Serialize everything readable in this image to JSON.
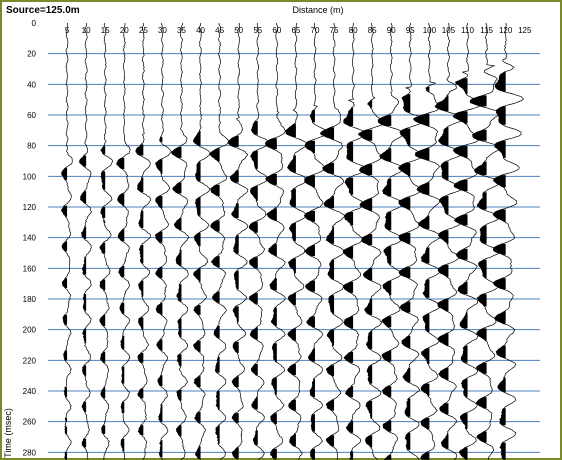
{
  "header": {
    "source_label": "Source=125.0m",
    "x_title": "Distance (m)",
    "y_title": "Time (msec)"
  },
  "colors": {
    "frame": "#7a8a2a",
    "gridline": "#4a7fc0",
    "trace": "#000000"
  },
  "chart_data": {
    "type": "seismic-shot-gather",
    "title": "",
    "xlabel": "Distance (m)",
    "ylabel": "Time (msec)",
    "x_ticks": [
      5,
      10,
      15,
      20,
      25,
      30,
      35,
      40,
      45,
      50,
      55,
      60,
      65,
      70,
      75,
      80,
      85,
      90,
      95,
      100,
      105,
      110,
      115,
      120,
      125
    ],
    "y_ticks": [
      0,
      20,
      40,
      60,
      80,
      100,
      120,
      140,
      160,
      180,
      200,
      220,
      240,
      260,
      280
    ],
    "xlim": [
      0,
      129
    ],
    "ylim": [
      0,
      285
    ],
    "source_position_m": 125.0,
    "y_axis_inverted": true,
    "horizontal_grid": true,
    "trace_offsets_m": [
      5,
      10,
      15,
      20,
      25,
      30,
      35,
      40,
      45,
      50,
      55,
      60,
      65,
      70,
      75,
      80,
      85,
      90,
      95,
      100,
      105,
      110,
      115,
      120
    ],
    "first_break_ms": [
      82,
      80,
      78,
      76,
      74,
      72,
      70,
      68,
      66,
      64,
      62,
      60,
      58,
      56,
      54,
      52,
      50,
      47,
      44,
      41,
      38,
      34,
      30,
      26
    ]
  }
}
